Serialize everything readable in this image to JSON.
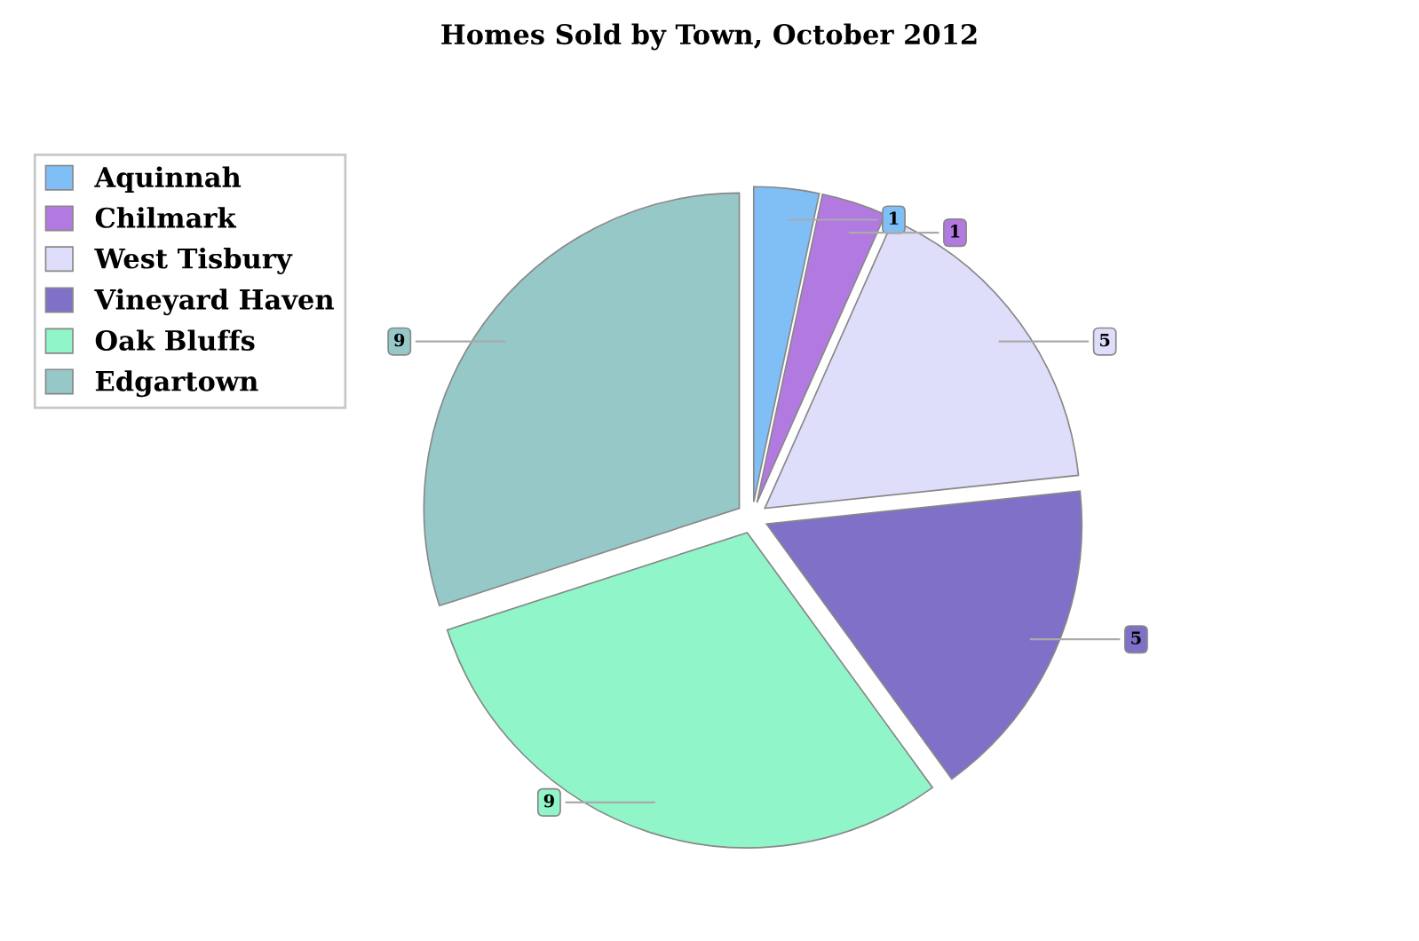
{
  "chart_data": {
    "type": "pie",
    "title": "Homes Sold by Town, October 2012",
    "categories": [
      "Aquinnah",
      "Chilmark",
      "West Tisbury",
      "Vineyard Haven",
      "Oak Bluffs",
      "Edgartown"
    ],
    "values": [
      1,
      1,
      5,
      5,
      9,
      9
    ],
    "colors": [
      "#80bff5",
      "#b27ae0",
      "#dedefa",
      "#8070c8",
      "#90f5c8",
      "#96c8c8"
    ],
    "data_labels": true,
    "legend": "top left"
  }
}
